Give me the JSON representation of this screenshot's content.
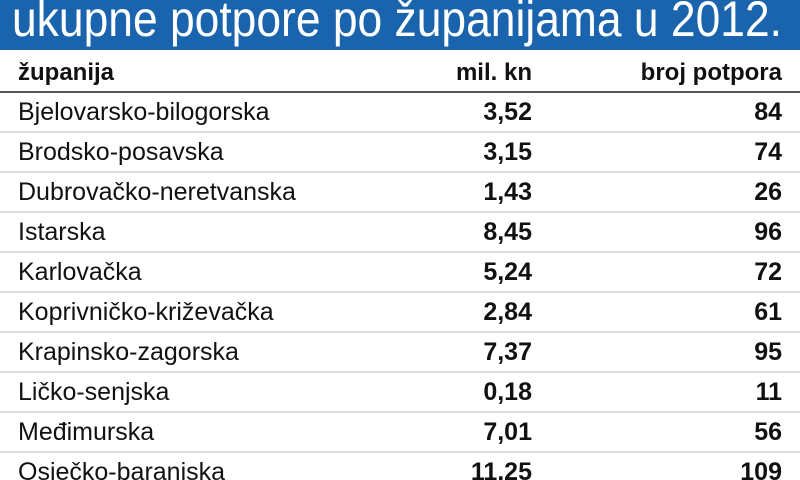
{
  "header": {
    "title": "ukupne potpore po županijama u 2012."
  },
  "table": {
    "columns": [
      "županija",
      "mil. kn",
      "broj potpora"
    ],
    "rows": [
      [
        "Bjelovarsko-bilogorska",
        "3,52",
        "84"
      ],
      [
        "Brodsko-posavska",
        "3,15",
        "74"
      ],
      [
        "Dubrovačko-neretvanska",
        "1,43",
        "26"
      ],
      [
        "Istarska",
        "8,45",
        "96"
      ],
      [
        "Karlovačka",
        "5,24",
        "72"
      ],
      [
        "Koprivničko-križevačka",
        "2,84",
        "61"
      ],
      [
        "Krapinsko-zagorska",
        "7,37",
        "95"
      ],
      [
        "Ličko-senjska",
        "0,18",
        "11"
      ],
      [
        "Međimurska",
        "7,01",
        "56"
      ],
      [
        "Osječko-baranjska",
        "11,25",
        "109"
      ]
    ]
  }
}
